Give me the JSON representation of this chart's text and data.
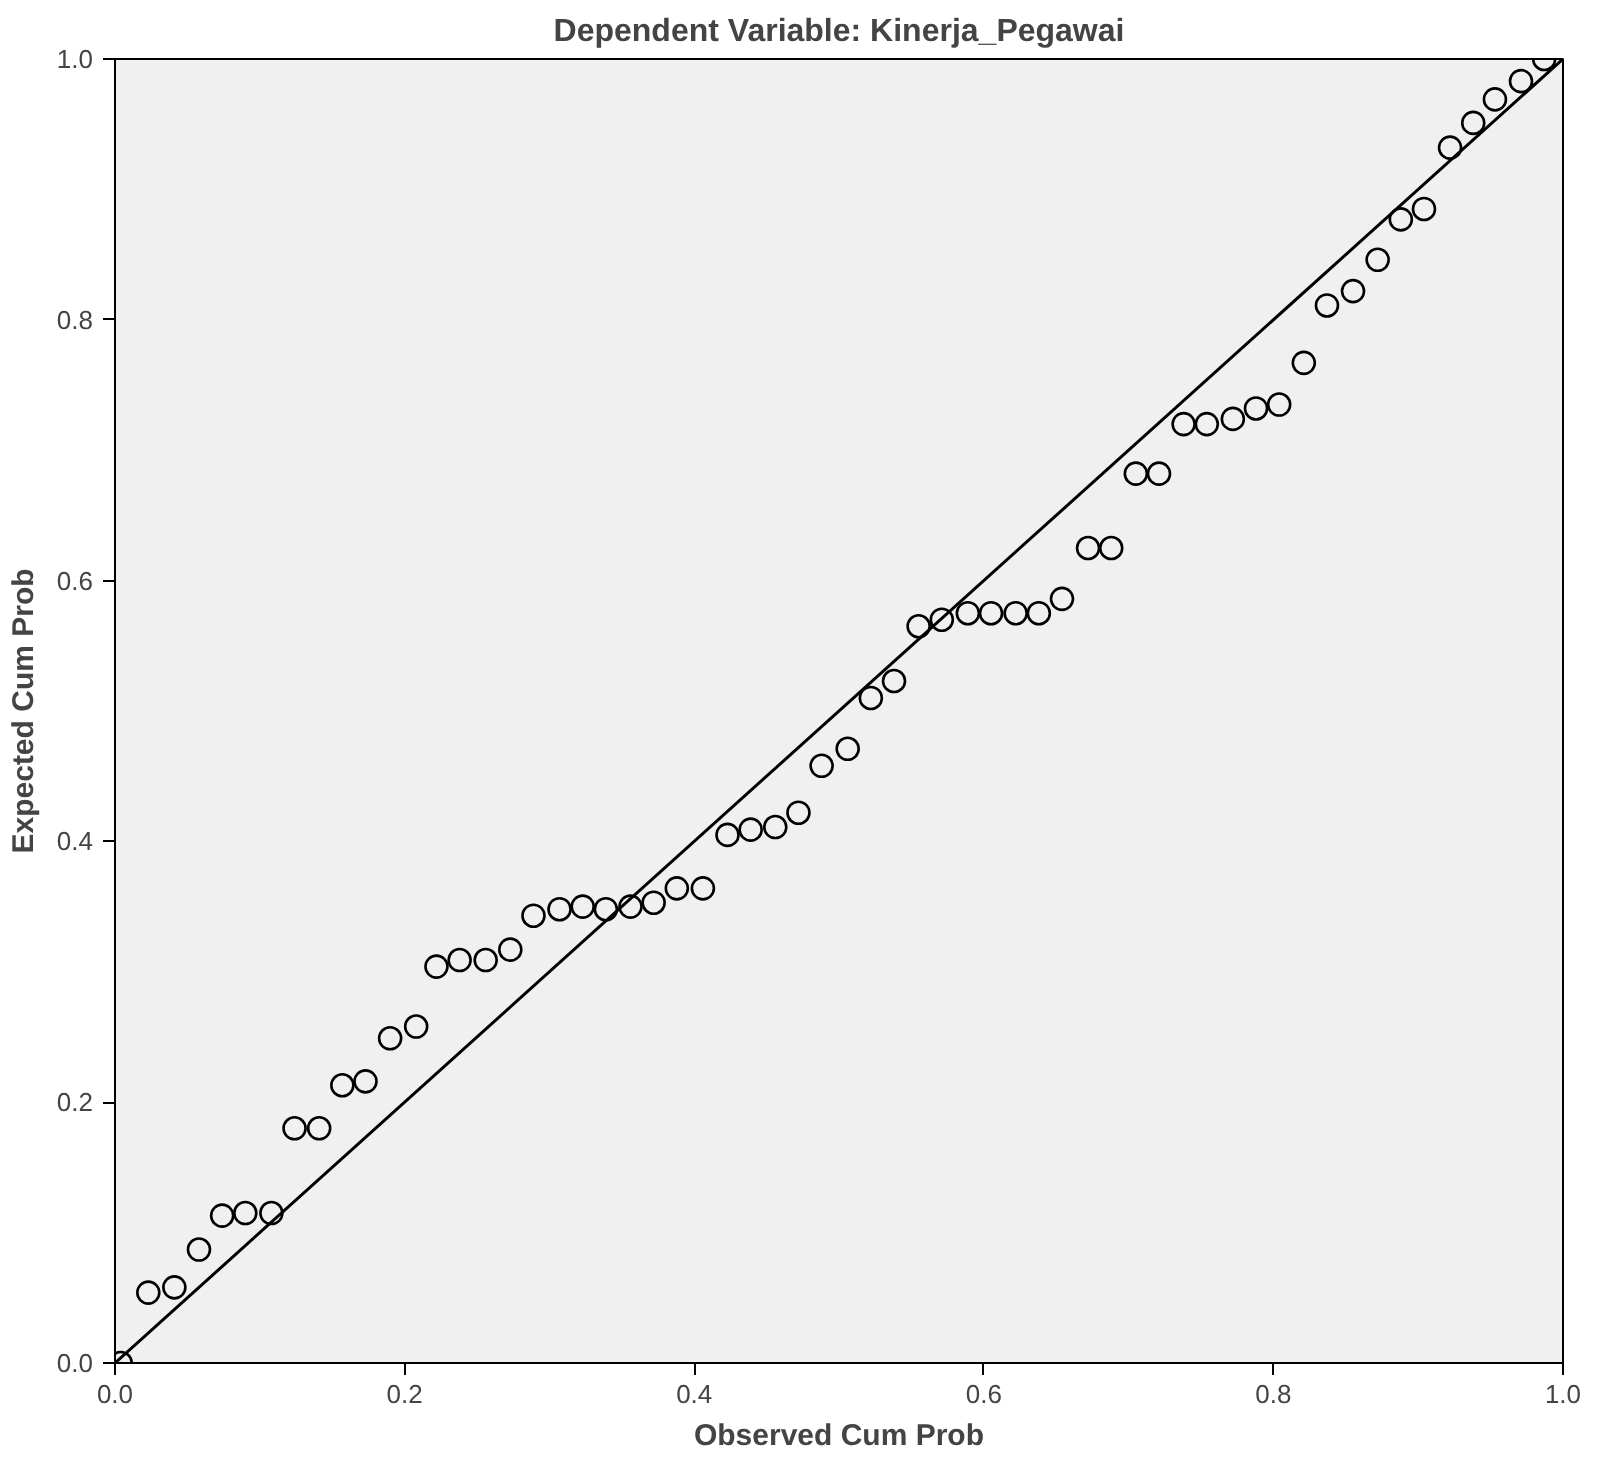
{
  "chart_data": {
    "type": "scatter",
    "title": "Dependent Variable: Kinerja_Pegawai",
    "xlabel": "Observed Cum Prob",
    "ylabel": "Expected Cum Prob",
    "xlim": [
      0,
      1
    ],
    "ylim": [
      0,
      1
    ],
    "xticks": [
      {
        "value": 0,
        "label": "0.0"
      },
      {
        "value": 0.2,
        "label": "0.2"
      },
      {
        "value": 0.4,
        "label": "0.4"
      },
      {
        "value": 0.6,
        "label": "0.6"
      },
      {
        "value": 0.8,
        "label": "0.8"
      },
      {
        "value": 1,
        "label": "1.0"
      }
    ],
    "yticks": [
      {
        "value": 0,
        "label": "0.0"
      },
      {
        "value": 0.2,
        "label": "0.2"
      },
      {
        "value": 0.4,
        "label": "0.4"
      },
      {
        "value": 0.6,
        "label": "0.6"
      },
      {
        "value": 0.8,
        "label": "0.8"
      },
      {
        "value": 1,
        "label": "1.0"
      }
    ],
    "grid": false,
    "series": [
      {
        "marker": "circle",
        "color": "#000000",
        "x": [
          0.004,
          0.023,
          0.041,
          0.058,
          0.074,
          0.09,
          0.108,
          0.124,
          0.141,
          0.157,
          0.173,
          0.19,
          0.208,
          0.222,
          0.238,
          0.256,
          0.273,
          0.289,
          0.307,
          0.323,
          0.339,
          0.356,
          0.372,
          0.388,
          0.406,
          0.423,
          0.439,
          0.456,
          0.472,
          0.488,
          0.506,
          0.522,
          0.538,
          0.555,
          0.571,
          0.589,
          0.605,
          0.622,
          0.638,
          0.654,
          0.672,
          0.688,
          0.705,
          0.721,
          0.738,
          0.754,
          0.772,
          0.788,
          0.804,
          0.821,
          0.837,
          0.855,
          0.872,
          0.888,
          0.904,
          0.922,
          0.938,
          0.953,
          0.971,
          0.987
        ],
        "values": [
          0.0,
          0.054,
          0.058,
          0.087,
          0.113,
          0.115,
          0.115,
          0.18,
          0.18,
          0.213,
          0.216,
          0.249,
          0.258,
          0.304,
          0.309,
          0.309,
          0.317,
          0.343,
          0.348,
          0.35,
          0.348,
          0.35,
          0.353,
          0.364,
          0.364,
          0.405,
          0.409,
          0.411,
          0.422,
          0.458,
          0.471,
          0.51,
          0.523,
          0.565,
          0.57,
          0.575,
          0.575,
          0.575,
          0.575,
          0.586,
          0.625,
          0.625,
          0.682,
          0.682,
          0.72,
          0.72,
          0.724,
          0.732,
          0.735,
          0.767,
          0.811,
          0.822,
          0.846,
          0.877,
          0.885,
          0.932,
          0.951,
          0.969,
          0.983,
          1.0
        ]
      },
      {
        "type": "line",
        "color": "#000000",
        "x": [
          0,
          1
        ],
        "values": [
          0,
          1
        ]
      }
    ]
  }
}
